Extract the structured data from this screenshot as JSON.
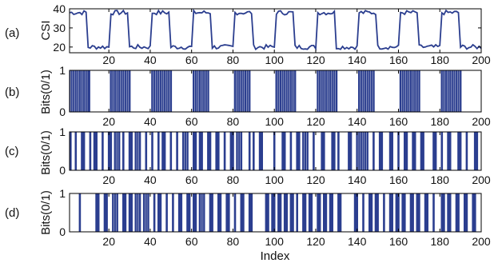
{
  "colors": {
    "series": "#2b3e8f",
    "axis": "#000000"
  },
  "chart_data": [
    {
      "type": "line",
      "panel_label": "(a)",
      "ylabel": "CSI",
      "xlim": [
        1,
        200
      ],
      "ylim": [
        17,
        40
      ],
      "xticks": [
        20,
        40,
        60,
        80,
        100,
        120,
        140,
        160,
        180,
        200
      ],
      "yticks": [
        20,
        30,
        40
      ],
      "period": 20,
      "high_start": [
        0,
        20,
        40,
        60,
        80,
        100,
        120,
        140,
        160,
        180
      ],
      "high_end": [
        9,
        29,
        49,
        69,
        89,
        109,
        129,
        149,
        169,
        189
      ],
      "high_value": 38,
      "low_value": 20
    },
    {
      "type": "bar",
      "panel_label": "(b)",
      "ylabel": "Bits(0/1)",
      "xlim": [
        1,
        200
      ],
      "ylim": [
        0,
        1
      ],
      "xticks": [
        20,
        40,
        60,
        80,
        100,
        120,
        140,
        160,
        180,
        200
      ],
      "yticks": [
        0,
        1
      ],
      "one_ranges": [
        [
          1,
          10
        ],
        [
          21,
          30
        ],
        [
          41,
          50
        ],
        [
          61,
          68
        ],
        [
          81,
          88
        ],
        [
          101,
          110
        ],
        [
          121,
          130
        ],
        [
          141,
          148
        ],
        [
          161,
          170
        ],
        [
          181,
          190
        ]
      ]
    },
    {
      "type": "bar",
      "panel_label": "(c)",
      "ylabel": "Bits(0/1)",
      "xlim": [
        1,
        200
      ],
      "ylim": [
        0,
        1
      ],
      "xticks": [
        20,
        40,
        60,
        80,
        100,
        120,
        140,
        160,
        180,
        200
      ],
      "yticks": [
        0,
        1
      ],
      "one_ranges": [
        [
          1,
          1
        ],
        [
          4,
          4
        ],
        [
          7,
          8
        ],
        [
          11,
          11
        ],
        [
          13,
          14
        ],
        [
          17,
          17
        ],
        [
          20,
          21
        ],
        [
          23,
          25
        ],
        [
          27,
          27
        ],
        [
          30,
          31
        ],
        [
          33,
          35
        ],
        [
          38,
          38
        ],
        [
          41,
          41
        ],
        [
          44,
          44
        ],
        [
          46,
          47
        ],
        [
          50,
          50
        ],
        [
          53,
          53
        ],
        [
          56,
          58
        ],
        [
          61,
          62
        ],
        [
          64,
          65
        ],
        [
          68,
          69
        ],
        [
          72,
          73
        ],
        [
          76,
          76
        ],
        [
          79,
          80
        ],
        [
          82,
          84
        ],
        [
          88,
          88
        ],
        [
          90,
          90
        ],
        [
          93,
          94
        ],
        [
          100,
          100
        ],
        [
          104,
          105
        ],
        [
          108,
          108
        ],
        [
          111,
          112
        ],
        [
          114,
          116
        ],
        [
          119,
          119
        ],
        [
          123,
          124
        ],
        [
          128,
          129
        ],
        [
          131,
          131
        ],
        [
          136,
          137
        ],
        [
          140,
          145
        ],
        [
          148,
          148
        ],
        [
          151,
          152
        ],
        [
          156,
          157
        ],
        [
          160,
          160
        ],
        [
          163,
          164
        ],
        [
          167,
          168
        ],
        [
          171,
          172
        ],
        [
          177,
          178
        ],
        [
          181,
          181
        ],
        [
          184,
          185
        ],
        [
          189,
          190
        ],
        [
          193,
          193
        ],
        [
          197,
          198
        ]
      ]
    },
    {
      "type": "bar",
      "panel_label": "(d)",
      "ylabel": "Bits(0/1)",
      "xlabel": "Index",
      "xlim": [
        1,
        200
      ],
      "ylim": [
        0,
        1
      ],
      "xticks": [
        20,
        40,
        60,
        80,
        100,
        120,
        140,
        160,
        180,
        200
      ],
      "yticks": [
        0,
        1
      ],
      "one_ranges": [
        [
          6,
          6
        ],
        [
          14,
          15
        ],
        [
          18,
          19
        ],
        [
          22,
          24
        ],
        [
          27,
          28
        ],
        [
          30,
          31
        ],
        [
          33,
          35
        ],
        [
          37,
          39
        ],
        [
          42,
          42
        ],
        [
          44,
          45
        ],
        [
          48,
          48
        ],
        [
          51,
          51
        ],
        [
          54,
          55
        ],
        [
          58,
          59
        ],
        [
          61,
          62
        ],
        [
          64,
          66
        ],
        [
          69,
          70
        ],
        [
          73,
          74
        ],
        [
          77,
          78
        ],
        [
          81,
          81
        ],
        [
          84,
          85
        ],
        [
          88,
          89
        ],
        [
          96,
          97
        ],
        [
          99,
          100
        ],
        [
          102,
          103
        ],
        [
          105,
          106
        ],
        [
          108,
          109
        ],
        [
          111,
          111
        ],
        [
          114,
          115
        ],
        [
          117,
          118
        ],
        [
          121,
          122
        ],
        [
          124,
          125
        ],
        [
          127,
          128
        ],
        [
          131,
          132
        ],
        [
          139,
          140
        ],
        [
          143,
          143
        ],
        [
          146,
          147
        ],
        [
          149,
          150
        ],
        [
          153,
          153
        ],
        [
          156,
          157
        ],
        [
          159,
          160
        ],
        [
          162,
          163
        ],
        [
          166,
          167
        ],
        [
          169,
          170
        ],
        [
          173,
          174
        ],
        [
          177,
          177
        ],
        [
          181,
          182
        ],
        [
          184,
          185
        ],
        [
          188,
          189
        ],
        [
          192,
          193
        ],
        [
          196,
          197
        ]
      ]
    }
  ]
}
